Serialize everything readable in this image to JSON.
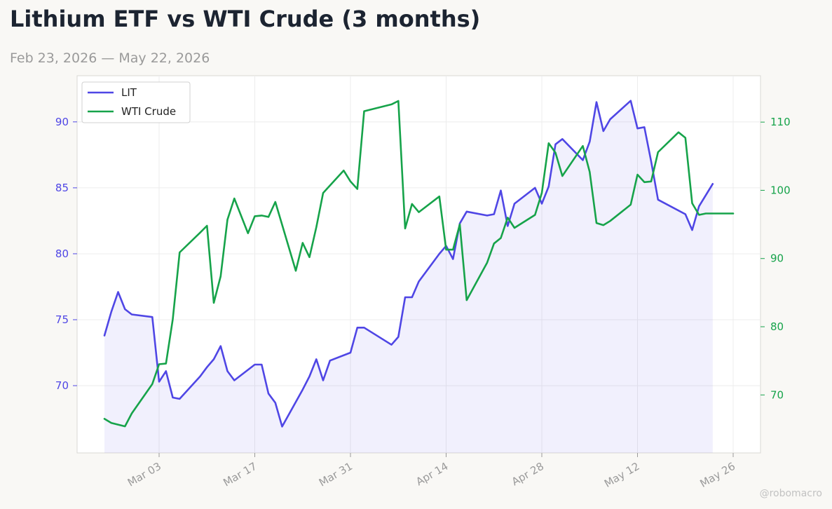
{
  "title": "Lithium ETF vs WTI Crude (3 months)",
  "subtitle": "Feb 23, 2026 — May 22, 2026",
  "watermark": "@robomacro",
  "chart_data": {
    "type": "line",
    "dual_axis": true,
    "grid": true,
    "legend_position": "top-left",
    "x_ticks": [
      {
        "date": "2026-03-03",
        "label": "Mar 03"
      },
      {
        "date": "2026-03-17",
        "label": "Mar 17"
      },
      {
        "date": "2026-03-31",
        "label": "Mar 31"
      },
      {
        "date": "2026-04-14",
        "label": "Apr 14"
      },
      {
        "date": "2026-04-28",
        "label": "Apr 28"
      },
      {
        "date": "2026-05-12",
        "label": "May 12"
      },
      {
        "date": "2026-05-26",
        "label": "May 26"
      }
    ],
    "xlim": [
      "2026-02-19",
      "2026-05-30"
    ],
    "y_left": {
      "lim": [
        64.9,
        93.5
      ],
      "ticks": [
        70,
        75,
        80,
        85,
        90
      ],
      "color": "#4f46e5"
    },
    "y_right": {
      "lim": [
        61.5,
        116.8
      ],
      "ticks": [
        70,
        80,
        90,
        100,
        110
      ],
      "color": "#16a34a"
    },
    "series": [
      {
        "name": "LIT",
        "axis": "left",
        "color": "#4f46e5",
        "fill": true,
        "points": [
          [
            "2026-02-23",
            73.8
          ],
          [
            "2026-02-24",
            75.6
          ],
          [
            "2026-02-25",
            77.1
          ],
          [
            "2026-02-26",
            75.8
          ],
          [
            "2026-02-27",
            75.4
          ],
          [
            "2026-03-02",
            75.2
          ],
          [
            "2026-03-03",
            70.3
          ],
          [
            "2026-03-04",
            71.1
          ],
          [
            "2026-03-05",
            69.1
          ],
          [
            "2026-03-06",
            69.0
          ],
          [
            "2026-03-09",
            70.7
          ],
          [
            "2026-03-10",
            71.4
          ],
          [
            "2026-03-11",
            72.0
          ],
          [
            "2026-03-12",
            73.0
          ],
          [
            "2026-03-13",
            71.1
          ],
          [
            "2026-03-14",
            70.4
          ],
          [
            "2026-03-17",
            71.6
          ],
          [
            "2026-03-18",
            71.6
          ],
          [
            "2026-03-19",
            69.4
          ],
          [
            "2026-03-20",
            68.7
          ],
          [
            "2026-03-21",
            66.9
          ],
          [
            "2026-03-24",
            69.7
          ],
          [
            "2026-03-25",
            70.7
          ],
          [
            "2026-03-26",
            72.0
          ],
          [
            "2026-03-27",
            70.4
          ],
          [
            "2026-03-28",
            71.9
          ],
          [
            "2026-03-31",
            72.5
          ],
          [
            "2026-04-01",
            74.4
          ],
          [
            "2026-04-02",
            74.4
          ],
          [
            "2026-04-06",
            73.1
          ],
          [
            "2026-04-07",
            73.7
          ],
          [
            "2026-04-08",
            76.7
          ],
          [
            "2026-04-09",
            76.7
          ],
          [
            "2026-04-10",
            77.9
          ],
          [
            "2026-04-13",
            80.0
          ],
          [
            "2026-04-14",
            80.6
          ],
          [
            "2026-04-15",
            79.6
          ],
          [
            "2026-04-16",
            82.3
          ],
          [
            "2026-04-17",
            83.2
          ],
          [
            "2026-04-20",
            82.9
          ],
          [
            "2026-04-21",
            83.0
          ],
          [
            "2026-04-22",
            84.8
          ],
          [
            "2026-04-23",
            82.1
          ],
          [
            "2026-04-24",
            83.8
          ],
          [
            "2026-04-27",
            85.0
          ],
          [
            "2026-04-28",
            83.8
          ],
          [
            "2026-04-29",
            85.1
          ],
          [
            "2026-04-30",
            88.3
          ],
          [
            "2026-05-01",
            88.7
          ],
          [
            "2026-05-04",
            87.1
          ],
          [
            "2026-05-05",
            88.5
          ],
          [
            "2026-05-06",
            91.5
          ],
          [
            "2026-05-07",
            89.3
          ],
          [
            "2026-05-08",
            90.2
          ],
          [
            "2026-05-11",
            91.6
          ],
          [
            "2026-05-12",
            89.5
          ],
          [
            "2026-05-13",
            89.6
          ],
          [
            "2026-05-14",
            87.0
          ],
          [
            "2026-05-15",
            84.1
          ],
          [
            "2026-05-19",
            83.0
          ],
          [
            "2026-05-20",
            81.8
          ],
          [
            "2026-05-21",
            83.6
          ],
          [
            "2026-05-23",
            85.3
          ]
        ]
      },
      {
        "name": "WTI Crude",
        "axis": "right",
        "color": "#16a34a",
        "fill": false,
        "points": [
          [
            "2026-02-23",
            66.5
          ],
          [
            "2026-02-24",
            65.9
          ],
          [
            "2026-02-26",
            65.4
          ],
          [
            "2026-02-27",
            67.3
          ],
          [
            "2026-03-02",
            71.6
          ],
          [
            "2026-03-03",
            74.5
          ],
          [
            "2026-03-04",
            74.6
          ],
          [
            "2026-03-05",
            81.1
          ],
          [
            "2026-03-06",
            90.9
          ],
          [
            "2026-03-09",
            93.8
          ],
          [
            "2026-03-10",
            94.8
          ],
          [
            "2026-03-11",
            83.5
          ],
          [
            "2026-03-12",
            87.4
          ],
          [
            "2026-03-13",
            95.7
          ],
          [
            "2026-03-14",
            98.8
          ],
          [
            "2026-03-16",
            93.7
          ],
          [
            "2026-03-17",
            96.2
          ],
          [
            "2026-03-18",
            96.3
          ],
          [
            "2026-03-19",
            96.1
          ],
          [
            "2026-03-20",
            98.3
          ],
          [
            "2026-03-23",
            88.2
          ],
          [
            "2026-03-24",
            92.3
          ],
          [
            "2026-03-25",
            90.2
          ],
          [
            "2026-03-26",
            94.6
          ],
          [
            "2026-03-27",
            99.6
          ],
          [
            "2026-03-30",
            102.9
          ],
          [
            "2026-03-31",
            101.3
          ],
          [
            "2026-04-01",
            100.2
          ],
          [
            "2026-04-02",
            111.6
          ],
          [
            "2026-04-06",
            112.6
          ],
          [
            "2026-04-07",
            113.1
          ],
          [
            "2026-04-08",
            94.4
          ],
          [
            "2026-04-09",
            98.0
          ],
          [
            "2026-04-10",
            96.8
          ],
          [
            "2026-04-13",
            99.1
          ],
          [
            "2026-04-14",
            91.3
          ],
          [
            "2026-04-15",
            91.3
          ],
          [
            "2026-04-16",
            95.0
          ],
          [
            "2026-04-17",
            83.9
          ],
          [
            "2026-04-20",
            89.4
          ],
          [
            "2026-04-21",
            92.2
          ],
          [
            "2026-04-22",
            93.0
          ],
          [
            "2026-04-23",
            96.0
          ],
          [
            "2026-04-24",
            94.5
          ],
          [
            "2026-04-27",
            96.4
          ],
          [
            "2026-04-28",
            99.6
          ],
          [
            "2026-04-29",
            106.9
          ],
          [
            "2026-04-30",
            105.5
          ],
          [
            "2026-05-01",
            102.1
          ],
          [
            "2026-05-04",
            106.5
          ],
          [
            "2026-05-05",
            102.7
          ],
          [
            "2026-05-06",
            95.2
          ],
          [
            "2026-05-07",
            94.9
          ],
          [
            "2026-05-08",
            95.5
          ],
          [
            "2026-05-11",
            97.9
          ],
          [
            "2026-05-12",
            102.3
          ],
          [
            "2026-05-13",
            101.2
          ],
          [
            "2026-05-14",
            101.3
          ],
          [
            "2026-05-15",
            105.6
          ],
          [
            "2026-05-18",
            108.5
          ],
          [
            "2026-05-19",
            107.7
          ],
          [
            "2026-05-20",
            98.1
          ],
          [
            "2026-05-21",
            96.4
          ],
          [
            "2026-05-22",
            96.6
          ],
          [
            "2026-05-26",
            96.6
          ]
        ]
      }
    ]
  }
}
